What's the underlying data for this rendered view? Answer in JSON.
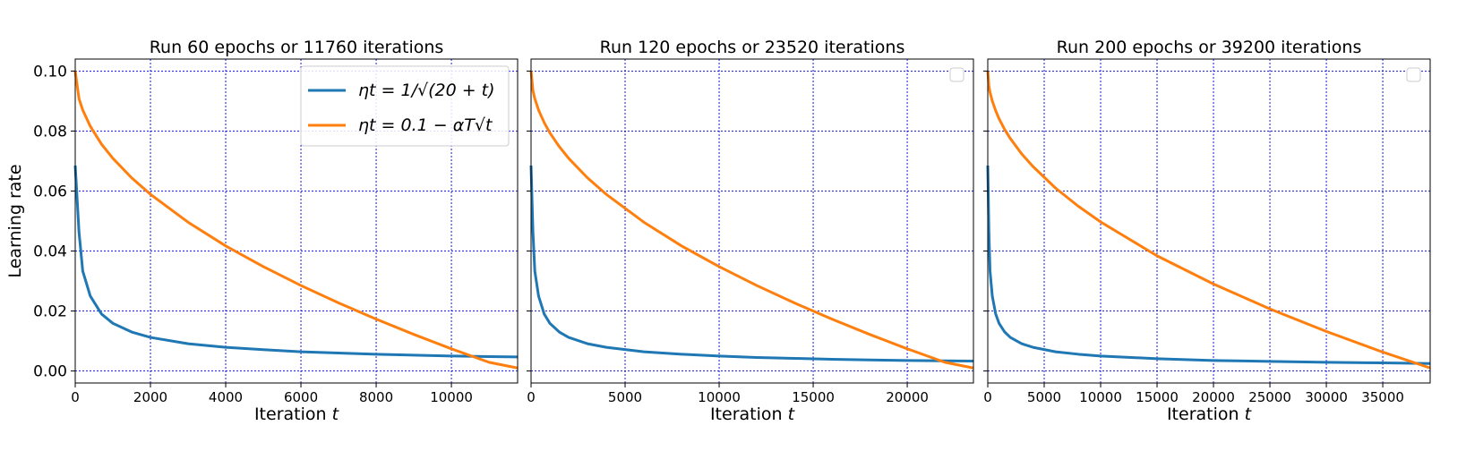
{
  "chart_data": [
    {
      "type": "line",
      "title": "Run  60 epochs or 11760 iterations",
      "xlabel": "Iteration t",
      "ylabel": "Learning rate",
      "xlim": [
        0,
        11760
      ],
      "ylim": [
        -0.004,
        0.104
      ],
      "xticks": [
        0,
        2000,
        4000,
        6000,
        8000,
        10000
      ],
      "yticks": [
        0.0,
        0.02,
        0.04,
        0.06,
        0.08,
        0.1
      ],
      "ytick_labels": [
        "0.00",
        "0.02",
        "0.04",
        "0.06",
        "0.08",
        "0.10"
      ],
      "grid": true,
      "legend": "top-right",
      "show_legend": true,
      "series": [
        {
          "name": "ηt = 1/√(20 + t)",
          "color": "#1f77b4",
          "x": [
            0,
            100,
            200,
            400,
            700,
            1000,
            1500,
            2000,
            3000,
            4000,
            5000,
            6000,
            7000,
            8000,
            9000,
            10000,
            11000,
            11760
          ],
          "y": [
            0.0685,
            0.0464,
            0.0333,
            0.025,
            0.019,
            0.0159,
            0.013,
            0.0112,
            0.0091,
            0.0079,
            0.0071,
            0.0064,
            0.006,
            0.0056,
            0.0053,
            0.005,
            0.0048,
            0.0047
          ]
        },
        {
          "name": "ηt = 0.1 − αT√t",
          "color": "#ff7f0e",
          "x": [
            0,
            100,
            200,
            400,
            700,
            1000,
            1500,
            2000,
            3000,
            4000,
            5000,
            6000,
            7000,
            8000,
            9000,
            10000,
            11000,
            11760
          ],
          "y": [
            0.1,
            0.0908,
            0.087,
            0.0816,
            0.0756,
            0.0709,
            0.0644,
            0.0589,
            0.0496,
            0.0417,
            0.0348,
            0.0285,
            0.0227,
            0.0173,
            0.0122,
            0.0074,
            0.0029,
            0.001
          ]
        }
      ]
    },
    {
      "type": "line",
      "title": "Run  120 epochs or 23520 iterations",
      "xlabel": "Iteration t",
      "ylabel": "",
      "xlim": [
        0,
        23520
      ],
      "ylim": [
        -0.004,
        0.104
      ],
      "xticks": [
        0,
        5000,
        10000,
        15000,
        20000
      ],
      "yticks": [
        0.0,
        0.02,
        0.04,
        0.06,
        0.08,
        0.1
      ],
      "ytick_labels": [],
      "grid": true,
      "legend": "top-right",
      "show_legend": false,
      "series": [
        {
          "name": "",
          "color": "#1f77b4",
          "x": [
            0,
            100,
            200,
            400,
            700,
            1000,
            1500,
            2000,
            3000,
            4000,
            6000,
            8000,
            10000,
            12000,
            14000,
            16000,
            18000,
            20000,
            22000,
            23520
          ],
          "y": [
            0.0685,
            0.0464,
            0.0333,
            0.025,
            0.019,
            0.0159,
            0.013,
            0.0112,
            0.0091,
            0.0079,
            0.0064,
            0.0056,
            0.005,
            0.0045,
            0.0042,
            0.0039,
            0.0037,
            0.0035,
            0.0034,
            0.0033
          ]
        },
        {
          "name": "",
          "color": "#ff7f0e",
          "x": [
            0,
            100,
            200,
            400,
            700,
            1000,
            1500,
            2000,
            3000,
            4000,
            6000,
            8000,
            10000,
            12000,
            14000,
            16000,
            18000,
            20000,
            22000,
            23520
          ],
          "y": [
            0.1,
            0.0935,
            0.0908,
            0.087,
            0.0828,
            0.0794,
            0.0748,
            0.0709,
            0.0644,
            0.0589,
            0.0496,
            0.0417,
            0.0348,
            0.0285,
            0.0227,
            0.0173,
            0.0122,
            0.0074,
            0.0029,
            0.001
          ]
        }
      ]
    },
    {
      "type": "line",
      "title": "Run  200 epochs or 39200 iterations",
      "xlabel": "Iteration t",
      "ylabel": "",
      "xlim": [
        0,
        39200
      ],
      "ylim": [
        -0.004,
        0.104
      ],
      "xticks": [
        0,
        5000,
        10000,
        15000,
        20000,
        25000,
        30000,
        35000
      ],
      "yticks": [
        0.0,
        0.02,
        0.04,
        0.06,
        0.08,
        0.1
      ],
      "ytick_labels": [],
      "grid": true,
      "legend": "top-right",
      "show_legend": false,
      "series": [
        {
          "name": "",
          "color": "#1f77b4",
          "x": [
            0,
            100,
            200,
            400,
            700,
            1000,
            1500,
            2000,
            3000,
            4000,
            6000,
            8000,
            10000,
            15000,
            20000,
            25000,
            30000,
            35000,
            39200
          ],
          "y": [
            0.0685,
            0.0464,
            0.0333,
            0.025,
            0.019,
            0.0159,
            0.013,
            0.0112,
            0.0091,
            0.0079,
            0.0064,
            0.0056,
            0.005,
            0.0041,
            0.0035,
            0.0032,
            0.0029,
            0.0027,
            0.0025
          ]
        },
        {
          "name": "",
          "color": "#ff7f0e",
          "x": [
            0,
            100,
            200,
            400,
            700,
            1000,
            1500,
            2000,
            3000,
            4000,
            6000,
            8000,
            10000,
            15000,
            20000,
            25000,
            30000,
            35000,
            39200
          ],
          "y": [
            0.1,
            0.095,
            0.0929,
            0.09,
            0.0868,
            0.0841,
            0.0805,
            0.0775,
            0.0724,
            0.0682,
            0.061,
            0.055,
            0.0497,
            0.0384,
            0.029,
            0.0207,
            0.0132,
            0.0063,
            0.001
          ]
        }
      ]
    }
  ]
}
